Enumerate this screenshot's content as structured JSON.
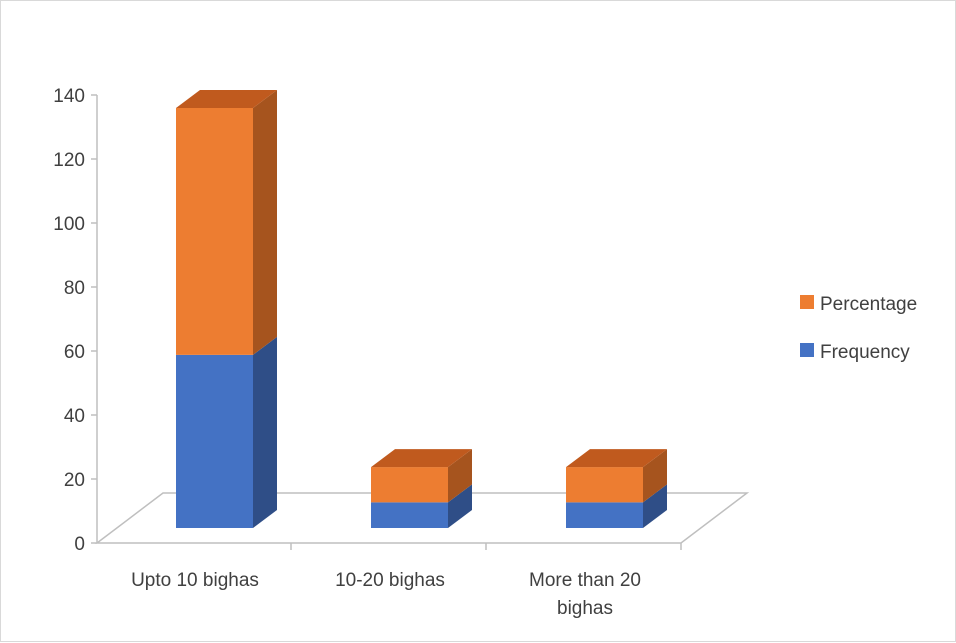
{
  "chart_data": {
    "type": "bar",
    "stacked": true,
    "three_d": true,
    "categories": [
      [
        "Upto 10 bighas"
      ],
      [
        "10-20 bighas"
      ],
      [
        "More than 20",
        "bighas"
      ]
    ],
    "series": [
      {
        "name": "Frequency",
        "values": [
          54,
          8,
          8
        ],
        "color": "#4472C4",
        "side_color": "#2F4E87",
        "top_color": "#3A62A8"
      },
      {
        "name": "Percentage",
        "values": [
          77,
          11,
          11
        ],
        "color": "#ED7D31",
        "side_color": "#A6541E",
        "top_color": "#C05A1E"
      }
    ],
    "ylim": [
      0,
      140
    ],
    "yticks": [
      0,
      20,
      40,
      60,
      80,
      100,
      120,
      140
    ],
    "legend_position": "right",
    "legend_order": [
      "Percentage",
      "Frequency"
    ],
    "grid": false
  }
}
